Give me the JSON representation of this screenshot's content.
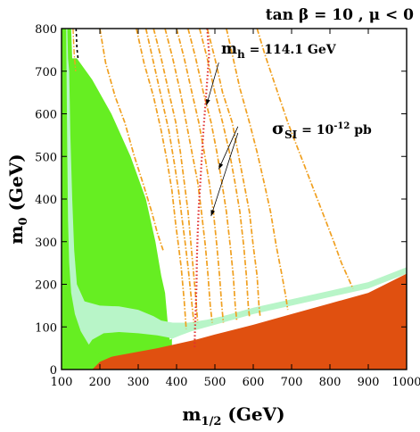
{
  "chart_data": {
    "type": "area",
    "title": "tan β = 10 ,  μ < 0",
    "xlabel": "m",
    "xlabel_sub": "1/2",
    "xlabel_unit": " (GeV)",
    "ylabel": "m",
    "ylabel_sub": "0",
    "ylabel_unit": " (GeV)",
    "xlim": [
      100,
      1000
    ],
    "ylim": [
      0,
      800
    ],
    "x_ticks": [
      100,
      200,
      300,
      400,
      500,
      600,
      700,
      800,
      900,
      1000
    ],
    "y_ticks": [
      0,
      100,
      200,
      300,
      400,
      500,
      600,
      700,
      800
    ],
    "grid": false,
    "colors": {
      "bright_green": "#66ee22",
      "light_green": "#b8f5c8",
      "orange_red": "#e05010",
      "orange_dash": "#f0a020",
      "red_dot": "#e03030",
      "black_dash": "#000000"
    },
    "regions": [
      {
        "color_key": "bright_green",
        "points": [
          [
            100,
            0
          ],
          [
            100,
            800
          ],
          [
            125,
            800
          ],
          [
            128,
            730
          ],
          [
            140,
            730
          ],
          [
            180,
            680
          ],
          [
            230,
            600
          ],
          [
            280,
            500
          ],
          [
            320,
            400
          ],
          [
            345,
            300
          ],
          [
            360,
            220
          ],
          [
            370,
            180
          ],
          [
            378,
            100
          ],
          [
            385,
            50
          ],
          [
            388,
            40
          ],
          [
            388,
            0
          ]
        ]
      },
      {
        "color_key": "light_green",
        "points": [
          [
            100,
            0
          ],
          [
            100,
            800
          ],
          [
            115,
            800
          ],
          [
            117,
            730
          ],
          [
            120,
            700
          ],
          [
            123,
            550
          ],
          [
            128,
            400
          ],
          [
            133,
            280
          ],
          [
            140,
            200
          ],
          [
            160,
            160
          ],
          [
            200,
            150
          ],
          [
            250,
            148
          ],
          [
            300,
            140
          ],
          [
            340,
            125
          ],
          [
            360,
            115
          ],
          [
            390,
            110
          ],
          [
            430,
            110
          ],
          [
            480,
            117
          ],
          [
            520,
            125
          ],
          [
            600,
            145
          ],
          [
            700,
            165
          ],
          [
            800,
            185
          ],
          [
            900,
            205
          ],
          [
            1000,
            240
          ],
          [
            1000,
            225
          ],
          [
            900,
            190
          ],
          [
            800,
            170
          ],
          [
            700,
            150
          ],
          [
            600,
            130
          ],
          [
            520,
            110
          ],
          [
            480,
            100
          ],
          [
            440,
            90
          ],
          [
            410,
            80
          ],
          [
            388,
            72
          ],
          [
            380,
            75
          ],
          [
            350,
            80
          ],
          [
            300,
            85
          ],
          [
            250,
            88
          ],
          [
            210,
            85
          ],
          [
            180,
            70
          ],
          [
            150,
            30
          ],
          [
            140,
            0
          ]
        ]
      },
      {
        "color_key": "bright_green",
        "points": [
          [
            100,
            0
          ],
          [
            100,
            800
          ],
          [
            112,
            800
          ],
          [
            113,
            700
          ],
          [
            115,
            500
          ],
          [
            117,
            350
          ],
          [
            120,
            250
          ],
          [
            125,
            180
          ],
          [
            135,
            130
          ],
          [
            150,
            90
          ],
          [
            170,
            60
          ],
          [
            190,
            40
          ],
          [
            210,
            30
          ],
          [
            230,
            28
          ],
          [
            260,
            30
          ],
          [
            300,
            40
          ],
          [
            340,
            55
          ],
          [
            370,
            65
          ],
          [
            388,
            72
          ],
          [
            388,
            0
          ]
        ]
      },
      {
        "color_key": "orange_red",
        "points": [
          [
            180,
            0
          ],
          [
            200,
            18
          ],
          [
            230,
            30
          ],
          [
            290,
            40
          ],
          [
            350,
            50
          ],
          [
            400,
            60
          ],
          [
            450,
            70
          ],
          [
            500,
            82
          ],
          [
            600,
            105
          ],
          [
            700,
            130
          ],
          [
            800,
            155
          ],
          [
            900,
            180
          ],
          [
            1000,
            225
          ],
          [
            1000,
            0
          ]
        ]
      }
    ],
    "orange_curves": [
      [
        [
          130,
          800
        ],
        [
          133,
          740
        ],
        [
          137,
          700
        ]
      ],
      [
        [
          200,
          800
        ],
        [
          215,
          720
        ],
        [
          240,
          640
        ],
        [
          265,
          580
        ],
        [
          290,
          500
        ],
        [
          315,
          430
        ],
        [
          335,
          370
        ],
        [
          350,
          320
        ],
        [
          365,
          280
        ]
      ],
      [
        [
          295,
          800
        ],
        [
          315,
          720
        ],
        [
          340,
          640
        ],
        [
          360,
          560
        ],
        [
          375,
          490
        ],
        [
          388,
          420
        ],
        [
          398,
          340
        ],
        [
          405,
          290
        ],
        [
          412,
          240
        ],
        [
          420,
          160
        ],
        [
          425,
          95
        ]
      ],
      [
        [
          320,
          800
        ],
        [
          340,
          720
        ],
        [
          360,
          640
        ],
        [
          380,
          560
        ],
        [
          395,
          480
        ],
        [
          405,
          420
        ],
        [
          415,
          350
        ],
        [
          422,
          300
        ],
        [
          430,
          240
        ],
        [
          437,
          180
        ],
        [
          445,
          110
        ]
      ],
      [
        [
          340,
          800
        ],
        [
          360,
          730
        ],
        [
          380,
          650
        ],
        [
          398,
          580
        ],
        [
          410,
          510
        ],
        [
          420,
          440
        ],
        [
          430,
          370
        ],
        [
          437,
          300
        ],
        [
          443,
          240
        ],
        [
          450,
          170
        ],
        [
          455,
          110
        ]
      ],
      [
        [
          370,
          800
        ],
        [
          390,
          730
        ],
        [
          410,
          650
        ],
        [
          425,
          580
        ],
        [
          440,
          510
        ],
        [
          455,
          440
        ],
        [
          465,
          370
        ],
        [
          475,
          290
        ],
        [
          482,
          220
        ],
        [
          488,
          150
        ],
        [
          493,
          110
        ]
      ],
      [
        [
          400,
          800
        ],
        [
          420,
          730
        ],
        [
          440,
          650
        ],
        [
          458,
          580
        ],
        [
          472,
          510
        ],
        [
          485,
          440
        ],
        [
          496,
          370
        ],
        [
          505,
          290
        ],
        [
          512,
          220
        ],
        [
          518,
          150
        ],
        [
          522,
          110
        ]
      ],
      [
        [
          430,
          800
        ],
        [
          450,
          730
        ],
        [
          470,
          650
        ],
        [
          490,
          580
        ],
        [
          505,
          510
        ],
        [
          518,
          440
        ],
        [
          530,
          370
        ],
        [
          540,
          290
        ],
        [
          548,
          220
        ],
        [
          553,
          150
        ],
        [
          557,
          115
        ]
      ],
      [
        [
          460,
          800
        ],
        [
          480,
          730
        ],
        [
          500,
          650
        ],
        [
          520,
          580
        ],
        [
          538,
          510
        ],
        [
          552,
          440
        ],
        [
          565,
          370
        ],
        [
          575,
          290
        ],
        [
          582,
          220
        ],
        [
          587,
          150
        ],
        [
          590,
          125
        ]
      ],
      [
        [
          480,
          800
        ],
        [
          500,
          730
        ],
        [
          520,
          650
        ],
        [
          545,
          580
        ],
        [
          560,
          510
        ],
        [
          575,
          440
        ],
        [
          590,
          370
        ],
        [
          600,
          290
        ],
        [
          610,
          220
        ],
        [
          615,
          150
        ],
        [
          618,
          125
        ]
      ],
      [
        [
          530,
          800
        ],
        [
          545,
          740
        ],
        [
          565,
          660
        ],
        [
          590,
          580
        ],
        [
          610,
          510
        ],
        [
          628,
          440
        ],
        [
          645,
          370
        ],
        [
          660,
          290
        ],
        [
          675,
          220
        ],
        [
          685,
          170
        ],
        [
          690,
          140
        ]
      ],
      [
        [
          610,
          800
        ],
        [
          630,
          740
        ],
        [
          660,
          660
        ],
        [
          690,
          580
        ],
        [
          720,
          510
        ],
        [
          750,
          440
        ],
        [
          780,
          370
        ],
        [
          810,
          300
        ],
        [
          830,
          250
        ],
        [
          850,
          210
        ],
        [
          860,
          190
        ]
      ]
    ],
    "red_curve": [
      [
        480,
        800
      ],
      [
        485,
        740
      ],
      [
        480,
        680
      ],
      [
        475,
        620
      ],
      [
        470,
        560
      ],
      [
        466,
        500
      ],
      [
        462,
        440
      ],
      [
        458,
        380
      ],
      [
        455,
        320
      ],
      [
        453,
        260
      ],
      [
        452,
        200
      ],
      [
        450,
        140
      ],
      [
        448,
        90
      ],
      [
        447,
        50
      ]
    ],
    "black_dashed_curve": [
      [
        138,
        800
      ],
      [
        139,
        780
      ],
      [
        140,
        755
      ],
      [
        143,
        730
      ]
    ],
    "annotations": [
      {
        "base": "m",
        "sub": "h",
        "text": " = 114.1 GeV"
      },
      {
        "base": "σ",
        "sub": "SI",
        "text": " = 10",
        "sup": "-12",
        "tail": " pb"
      }
    ],
    "annotation_arrows": [
      {
        "from": [
          510,
          720
        ],
        "to": [
          478,
          620
        ]
      },
      {
        "from": [
          560,
          570
        ],
        "to": [
          510,
          470
        ]
      },
      {
        "from": [
          560,
          555
        ],
        "to": [
          490,
          360
        ]
      }
    ]
  }
}
